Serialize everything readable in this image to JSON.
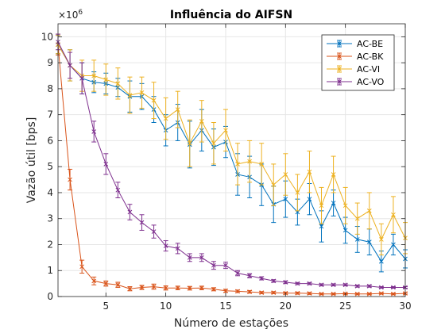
{
  "chart_data": {
    "type": "line",
    "title": "Influência do AIFSN",
    "xlabel": "Número de estações",
    "ylabel": "Vazão útil [bps]",
    "y_exponent_label": "×10",
    "y_exponent_power": "6",
    "xlim": [
      1,
      30
    ],
    "ylim": [
      0,
      10.5
    ],
    "xticks": [
      5,
      10,
      15,
      20,
      25,
      30
    ],
    "xtick_labels": [
      "5",
      "10",
      "15",
      "20",
      "25",
      "30"
    ],
    "yticks": [
      0,
      1,
      2,
      3,
      4,
      5,
      6,
      7,
      8,
      9,
      10
    ],
    "ytick_labels": [
      "0",
      "1",
      "2",
      "3",
      "4",
      "5",
      "6",
      "7",
      "8",
      "9",
      "10"
    ],
    "grid": true,
    "legend_position": "top-right",
    "y_unit_scale": 1000000,
    "x": [
      1,
      2,
      3,
      4,
      5,
      6,
      7,
      8,
      9,
      10,
      11,
      12,
      13,
      14,
      15,
      16,
      17,
      18,
      19,
      20,
      21,
      22,
      23,
      24,
      25,
      26,
      27,
      28,
      29,
      30
    ],
    "series": [
      {
        "name": "AC-BE",
        "color": "#0072BD",
        "values": [
          9.7,
          8.9,
          8.4,
          8.25,
          8.2,
          8.05,
          7.7,
          7.7,
          7.2,
          6.4,
          6.7,
          5.85,
          6.4,
          5.75,
          5.95,
          4.7,
          4.6,
          4.3,
          3.55,
          3.75,
          3.25,
          3.75,
          2.7,
          3.6,
          2.55,
          2.2,
          2.1,
          1.35,
          2.0,
          1.45
        ],
        "errors": [
          0.35,
          0.6,
          0.6,
          0.4,
          0.4,
          0.35,
          0.6,
          0.5,
          0.5,
          0.6,
          0.7,
          0.9,
          0.8,
          0.7,
          0.6,
          0.8,
          0.8,
          0.8,
          0.7,
          0.7,
          0.5,
          0.6,
          0.6,
          0.5,
          0.5,
          0.5,
          0.5,
          0.4,
          0.4,
          0.35
        ]
      },
      {
        "name": "AC-BK",
        "color": "#D95319",
        "values": [
          9.7,
          4.5,
          1.15,
          0.6,
          0.5,
          0.45,
          0.3,
          0.35,
          0.38,
          0.33,
          0.33,
          0.32,
          0.33,
          0.28,
          0.22,
          0.2,
          0.18,
          0.15,
          0.15,
          0.13,
          0.13,
          0.12,
          0.1,
          0.1,
          0.11,
          0.1,
          0.1,
          0.12,
          0.1,
          0.12
        ],
        "errors": [
          0.4,
          0.4,
          0.25,
          0.15,
          0.1,
          0.1,
          0.08,
          0.08,
          0.1,
          0.08,
          0.07,
          0.07,
          0.07,
          0.06,
          0.06,
          0.05,
          0.05,
          0.04,
          0.04,
          0.04,
          0.04,
          0.04,
          0.03,
          0.03,
          0.03,
          0.03,
          0.03,
          0.03,
          0.03,
          0.03
        ]
      },
      {
        "name": "AC-VI",
        "color": "#EDB120",
        "values": [
          9.7,
          8.9,
          8.5,
          8.5,
          8.35,
          8.2,
          7.75,
          7.85,
          7.55,
          6.85,
          7.2,
          5.9,
          6.75,
          5.9,
          6.4,
          5.1,
          5.2,
          5.1,
          4.3,
          4.7,
          4.0,
          4.8,
          3.5,
          4.7,
          3.5,
          3.0,
          3.3,
          2.2,
          3.15,
          2.25
        ],
        "errors": [
          0.35,
          0.6,
          0.6,
          0.6,
          0.6,
          0.6,
          0.7,
          0.6,
          0.7,
          0.8,
          0.7,
          0.9,
          0.8,
          0.8,
          0.8,
          0.8,
          0.8,
          0.8,
          0.8,
          0.8,
          0.7,
          0.8,
          0.7,
          0.7,
          0.7,
          0.6,
          0.7,
          0.6,
          0.7,
          0.6
        ]
      },
      {
        "name": "AC-VO",
        "color": "#7E2F8E",
        "values": [
          9.8,
          8.9,
          8.4,
          6.35,
          5.1,
          4.1,
          3.25,
          2.85,
          2.5,
          1.95,
          1.85,
          1.5,
          1.5,
          1.2,
          1.2,
          0.9,
          0.8,
          0.7,
          0.6,
          0.55,
          0.5,
          0.5,
          0.45,
          0.45,
          0.45,
          0.4,
          0.4,
          0.35,
          0.35,
          0.35
        ],
        "errors": [
          0.3,
          0.5,
          0.6,
          0.4,
          0.4,
          0.3,
          0.3,
          0.3,
          0.25,
          0.2,
          0.2,
          0.15,
          0.15,
          0.15,
          0.12,
          0.1,
          0.08,
          0.06,
          0.05,
          0.05,
          0.04,
          0.04,
          0.04,
          0.04,
          0.04,
          0.04,
          0.04,
          0.03,
          0.03,
          0.03
        ]
      }
    ]
  }
}
